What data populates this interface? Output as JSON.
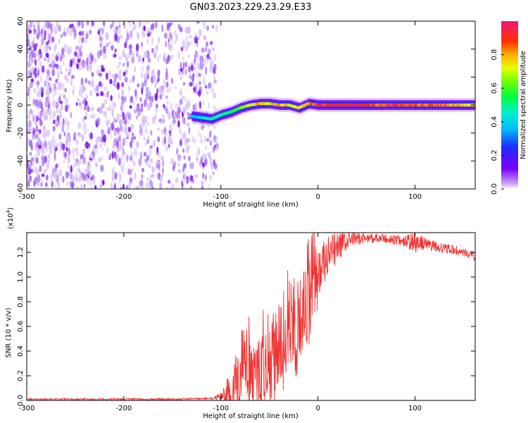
{
  "figure": {
    "title": "GN03.2023.229.23.29.E33"
  },
  "chart_data": [
    {
      "type": "heatmap",
      "title": "GN03.2023.229.23.29.E33",
      "xlabel": "Height of straight line (km)",
      "ylabel": "Frequency (Hz)",
      "xlim": [
        -300,
        162
      ],
      "ylim": [
        -60,
        60
      ],
      "xticks": [
        -300,
        -200,
        -100,
        0,
        100
      ],
      "yticks": [
        -60,
        -40,
        -20,
        0,
        20,
        40,
        60
      ],
      "colorbar": {
        "label": "Normalized spectral amplitude",
        "range": [
          0,
          1
        ],
        "ticks": [
          0.0,
          0.2,
          0.4,
          0.6,
          0.8
        ],
        "tick_labels": [
          "0.0",
          "0.2",
          "0.4",
          "0.6",
          "0.8"
        ]
      },
      "ridge": {
        "x": [
          -130,
          -120,
          -110,
          -100,
          -90,
          -80,
          -70,
          -60,
          -50,
          -40,
          -30,
          -20,
          -10,
          0,
          20,
          40,
          60,
          80,
          100,
          120,
          140,
          162
        ],
        "y": [
          -8,
          -9,
          -10,
          -7,
          -5,
          -2,
          0,
          1,
          1,
          0,
          0,
          -2,
          1,
          0,
          0,
          0,
          0,
          0,
          0,
          0,
          0,
          0
        ],
        "amplitude": [
          0.35,
          0.45,
          0.5,
          0.5,
          0.55,
          0.6,
          0.7,
          0.8,
          0.75,
          0.8,
          0.75,
          0.7,
          0.8,
          0.9,
          0.92,
          0.95,
          0.85,
          0.9,
          0.85,
          0.85,
          0.8,
          0.75
        ]
      },
      "noise_region_x": [
        -300,
        -105
      ]
    },
    {
      "type": "line",
      "xlabel": "Height of straight line (km)",
      "ylabel": "SNR (10 * v/v)",
      "scale_label": "(x10",
      "scale_exponent": "4",
      "scale_suffix": ")",
      "xlim": [
        -300,
        162
      ],
      "ylim": [
        0,
        13600
      ],
      "xticks": [
        -300,
        -200,
        -100,
        0,
        100
      ],
      "yticks": [
        0,
        2000,
        4000,
        6000,
        8000,
        10000,
        12000
      ],
      "ytick_labels": [
        "0.0",
        "0.2",
        "0.4",
        "0.6",
        "0.8",
        "1.0",
        "1.2"
      ],
      "color": "#f03232",
      "envelope": {
        "x": [
          -300,
          -250,
          -200,
          -150,
          -110,
          -100,
          -95,
          -90,
          -85,
          -80,
          -75,
          -70,
          -65,
          -60,
          -55,
          -50,
          -45,
          -40,
          -35,
          -30,
          -25,
          -20,
          -15,
          -10,
          -5,
          0,
          10,
          20,
          30,
          40,
          50,
          60,
          70,
          80,
          90,
          100,
          110,
          120,
          130,
          140,
          150,
          162
        ],
        "y": [
          100,
          100,
          100,
          100,
          150,
          300,
          600,
          1000,
          1500,
          2000,
          2200,
          2400,
          2000,
          2000,
          2500,
          3000,
          4000,
          4800,
          5500,
          6200,
          6500,
          7000,
          7500,
          8000,
          9000,
          10000,
          11500,
          12400,
          12900,
          13100,
          13200,
          13100,
          13100,
          13000,
          12900,
          12800,
          12700,
          12500,
          12300,
          12200,
          12000,
          11700
        ]
      },
      "noise_amplitude": {
        "x": [
          -300,
          -110,
          -100,
          -90,
          -80,
          -60,
          -40,
          -20,
          -5,
          10,
          30,
          50,
          70,
          90,
          100,
          110,
          130,
          162
        ],
        "y": [
          60,
          80,
          300,
          1500,
          2500,
          3000,
          3500,
          3500,
          3000,
          1800,
          700,
          400,
          400,
          450,
          900,
          500,
          400,
          350
        ]
      }
    }
  ]
}
